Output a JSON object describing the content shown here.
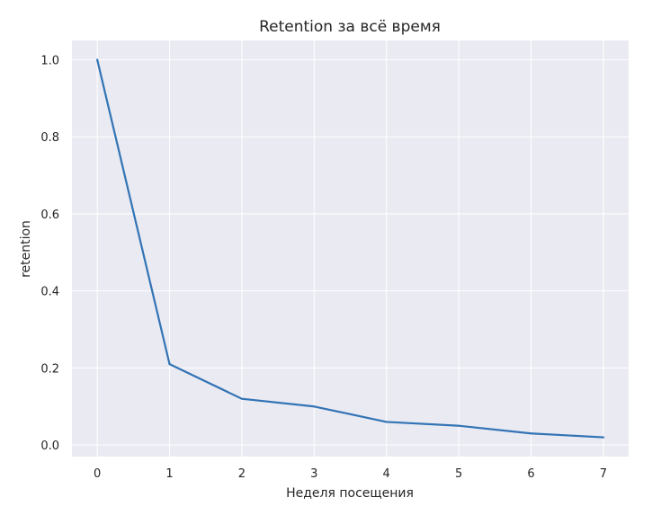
{
  "chart_data": {
    "type": "line",
    "title": "Retention за всё время",
    "xlabel": "Неделя посещения",
    "ylabel": "retention",
    "x": [
      0,
      1,
      2,
      3,
      4,
      5,
      6,
      7
    ],
    "series": [
      {
        "values": [
          1.0,
          0.21,
          0.12,
          0.1,
          0.06,
          0.05,
          0.03,
          0.02
        ]
      }
    ],
    "xticks": [
      "0",
      "1",
      "2",
      "3",
      "4",
      "5",
      "6",
      "7"
    ],
    "yticks": [
      "0.0",
      "0.2",
      "0.4",
      "0.6",
      "0.8",
      "1.0"
    ],
    "xlim": [
      -0.35,
      7.35
    ],
    "ylim": [
      -0.03,
      1.05
    ],
    "grid": true,
    "colors": {
      "background": "#eaeaf2",
      "grid": "#ffffff",
      "line": "#3274b5"
    }
  }
}
